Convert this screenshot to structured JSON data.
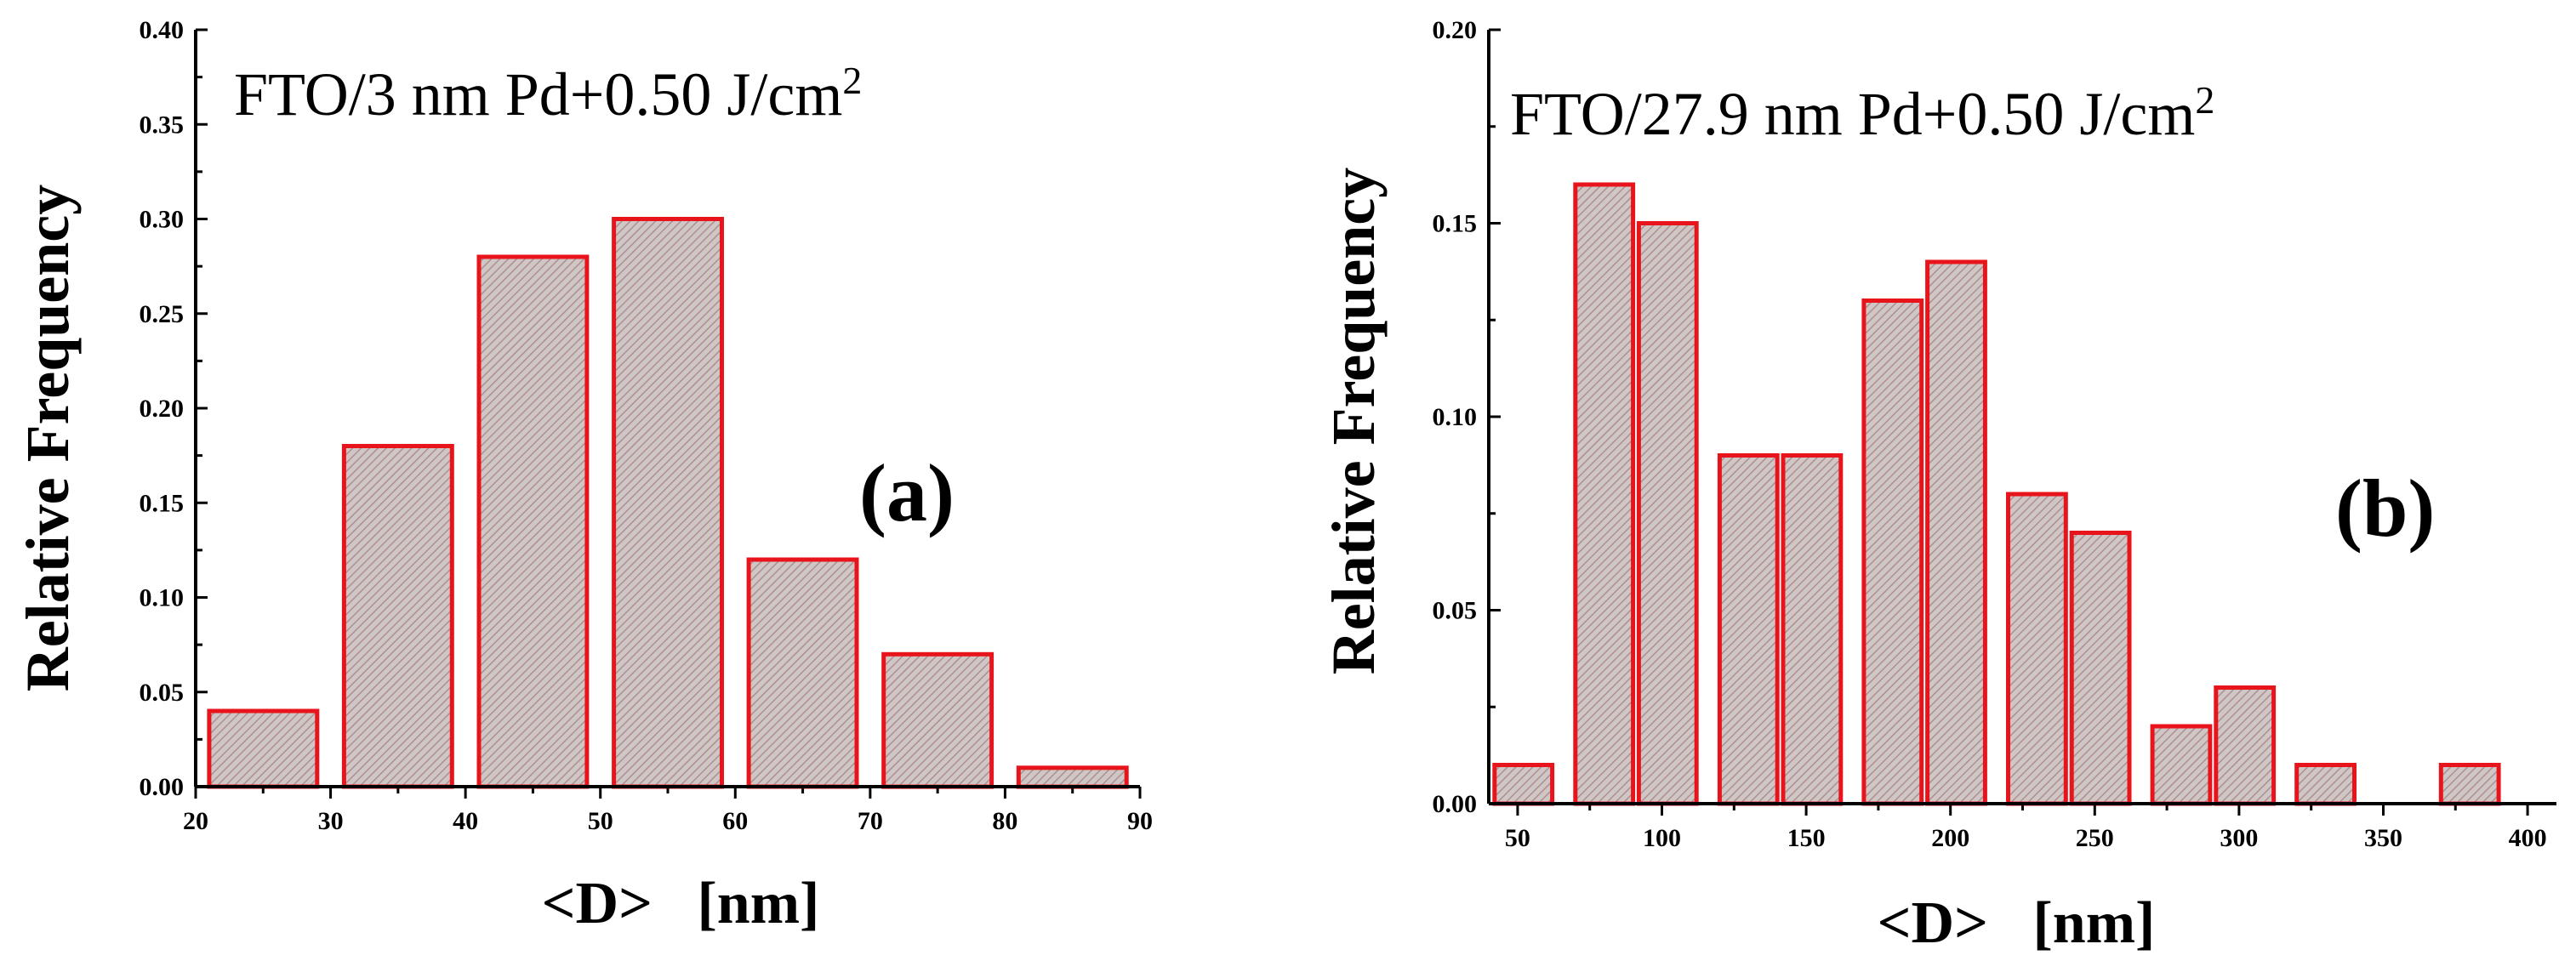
{
  "colors": {
    "bar_edge": "#e8141b",
    "bar_fill": "#cfc6c6",
    "hatch": "#b08e8e",
    "axis": "#000000"
  },
  "chart_data": [
    {
      "type": "bar",
      "panel_label": "(a)",
      "title": "FTO/3 nm Pd+0.50 J/cm",
      "title_sup": "2",
      "xlabel": "<D>   [nm]",
      "ylabel": "Relative Frequency",
      "xlim": [
        20,
        90
      ],
      "ylim": [
        0,
        0.4
      ],
      "xticks": [
        "20",
        "30",
        "40",
        "50",
        "60",
        "70",
        "80",
        "90"
      ],
      "yticks": [
        "0.00",
        "0.05",
        "0.10",
        "0.15",
        "0.20",
        "0.25",
        "0.30",
        "0.35",
        "0.40"
      ],
      "bin_width": 10,
      "x": [
        25,
        35,
        45,
        55,
        65,
        75,
        85
      ],
      "values": [
        0.04,
        0.18,
        0.28,
        0.3,
        0.12,
        0.07,
        0.01
      ]
    },
    {
      "type": "bar",
      "panel_label": "(b)",
      "title": "FTO/27.9 nm Pd+0.50 J/cm",
      "title_sup": "2",
      "xlabel": "<D>   [nm]",
      "ylabel": "Relative Frequency",
      "xlim": [
        40,
        410
      ],
      "ylim": [
        0,
        0.2
      ],
      "xticks": [
        "50",
        "100",
        "150",
        "200",
        "250",
        "300",
        "350",
        "400"
      ],
      "yticks": [
        "0.00",
        "0.05",
        "0.10",
        "0.15",
        "0.20"
      ],
      "bin_width": 25,
      "x": [
        52,
        80,
        102,
        130,
        152,
        180,
        202,
        230,
        252,
        280,
        302,
        330,
        380
      ],
      "values": [
        0.01,
        0.16,
        0.15,
        0.09,
        0.09,
        0.13,
        0.14,
        0.08,
        0.07,
        0.02,
        0.03,
        0.01,
        0.01
      ]
    }
  ]
}
